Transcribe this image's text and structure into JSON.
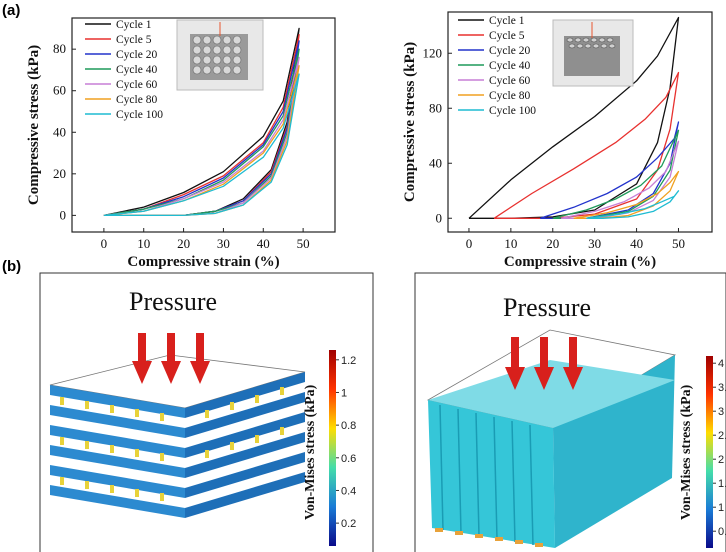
{
  "panel_labels": {
    "a": "(a)",
    "b": "(b)"
  },
  "colors": {
    "Cycle 1": "#111111",
    "Cycle 5": "#e8312f",
    "Cycle 20": "#2233cc",
    "Cycle 40": "#1f9a5a",
    "Cycle 60": "#c77fd6",
    "Cycle 80": "#f0a020",
    "Cycle 100": "#1fbcd2"
  },
  "chart_data": [
    {
      "type": "line",
      "title": "",
      "xlabel": "Compressive strain (%)",
      "ylabel": "Compressive stress (kPa)",
      "xlim": [
        -8,
        58
      ],
      "ylim": [
        -8,
        95
      ],
      "xticks": [
        0,
        10,
        20,
        30,
        40,
        50
      ],
      "yticks": [
        0,
        20,
        40,
        60,
        80
      ],
      "legend": "top-left",
      "series": [
        {
          "name": "Cycle 1",
          "load": [
            [
              0,
              0
            ],
            [
              10,
              4
            ],
            [
              20,
              11
            ],
            [
              30,
              21
            ],
            [
              40,
              38
            ],
            [
              45,
              55
            ],
            [
              49,
              90
            ]
          ],
          "unload": [
            [
              49,
              90
            ],
            [
              46,
              45
            ],
            [
              42,
              22
            ],
            [
              35,
              8
            ],
            [
              28,
              2
            ],
            [
              20,
              0
            ],
            [
              0,
              0
            ]
          ]
        },
        {
          "name": "Cycle 5",
          "load": [
            [
              0,
              0
            ],
            [
              10,
              3
            ],
            [
              20,
              10
            ],
            [
              30,
              19
            ],
            [
              40,
              35
            ],
            [
              45,
              52
            ],
            [
              49,
              87
            ]
          ],
          "unload": [
            [
              49,
              87
            ],
            [
              46,
              43
            ],
            [
              42,
              21
            ],
            [
              35,
              7
            ],
            [
              28,
              2
            ],
            [
              20,
              0
            ],
            [
              0,
              0
            ]
          ]
        },
        {
          "name": "Cycle 20",
          "load": [
            [
              0,
              0
            ],
            [
              10,
              3
            ],
            [
              20,
              9
            ],
            [
              30,
              18
            ],
            [
              40,
              34
            ],
            [
              45,
              50
            ],
            [
              49,
              84
            ]
          ],
          "unload": [
            [
              49,
              84
            ],
            [
              46,
              42
            ],
            [
              42,
              20
            ],
            [
              35,
              7
            ],
            [
              28,
              2
            ],
            [
              20,
              0
            ],
            [
              0,
              0
            ]
          ]
        },
        {
          "name": "Cycle 40",
          "load": [
            [
              0,
              0
            ],
            [
              10,
              3
            ],
            [
              20,
              8
            ],
            [
              30,
              17
            ],
            [
              40,
              33
            ],
            [
              45,
              48
            ],
            [
              49,
              80
            ]
          ],
          "unload": [
            [
              49,
              80
            ],
            [
              46,
              40
            ],
            [
              42,
              19
            ],
            [
              35,
              6
            ],
            [
              28,
              2
            ],
            [
              20,
              0
            ],
            [
              0,
              0
            ]
          ]
        },
        {
          "name": "Cycle 60",
          "load": [
            [
              0,
              0
            ],
            [
              10,
              2
            ],
            [
              20,
              8
            ],
            [
              30,
              16
            ],
            [
              40,
              31
            ],
            [
              45,
              46
            ],
            [
              49,
              76
            ]
          ],
          "unload": [
            [
              49,
              76
            ],
            [
              46,
              38
            ],
            [
              42,
              18
            ],
            [
              35,
              6
            ],
            [
              28,
              1
            ],
            [
              20,
              0
            ],
            [
              0,
              0
            ]
          ]
        },
        {
          "name": "Cycle 80",
          "load": [
            [
              0,
              0
            ],
            [
              10,
              2
            ],
            [
              20,
              7
            ],
            [
              30,
              15
            ],
            [
              40,
              30
            ],
            [
              45,
              44
            ],
            [
              49,
              72
            ]
          ],
          "unload": [
            [
              49,
              72
            ],
            [
              46,
              36
            ],
            [
              42,
              17
            ],
            [
              35,
              5
            ],
            [
              28,
              1
            ],
            [
              20,
              0
            ],
            [
              0,
              0
            ]
          ]
        },
        {
          "name": "Cycle 100",
          "load": [
            [
              0,
              0
            ],
            [
              10,
              2
            ],
            [
              20,
              7
            ],
            [
              30,
              14
            ],
            [
              40,
              28
            ],
            [
              45,
              42
            ],
            [
              49,
              68
            ]
          ],
          "unload": [
            [
              49,
              68
            ],
            [
              46,
              34
            ],
            [
              42,
              16
            ],
            [
              35,
              5
            ],
            [
              28,
              1
            ],
            [
              20,
              0
            ],
            [
              0,
              0
            ]
          ]
        }
      ]
    },
    {
      "type": "line",
      "title": "",
      "xlabel": "Compressive strain (%)",
      "ylabel": "Compressive stress (kPa)",
      "xlim": [
        -5,
        58
      ],
      "ylim": [
        -10,
        150
      ],
      "xticks": [
        0,
        10,
        20,
        30,
        40,
        50
      ],
      "yticks": [
        0,
        40,
        80,
        120
      ],
      "legend": "top-left",
      "series": [
        {
          "name": "Cycle 1",
          "load": [
            [
              0,
              0
            ],
            [
              10,
              28
            ],
            [
              20,
              52
            ],
            [
              30,
              74
            ],
            [
              40,
              100
            ],
            [
              45,
              118
            ],
            [
              50,
              146
            ]
          ],
          "unload": [
            [
              50,
              146
            ],
            [
              48,
              95
            ],
            [
              45,
              55
            ],
            [
              40,
              25
            ],
            [
              30,
              6
            ],
            [
              20,
              1
            ],
            [
              10,
              0
            ],
            [
              0,
              0
            ]
          ]
        },
        {
          "name": "Cycle 5",
          "load": [
            [
              6,
              0
            ],
            [
              15,
              18
            ],
            [
              25,
              36
            ],
            [
              35,
              55
            ],
            [
              42,
              72
            ],
            [
              47,
              88
            ],
            [
              50,
              106
            ]
          ],
          "unload": [
            [
              50,
              106
            ],
            [
              48,
              65
            ],
            [
              45,
              35
            ],
            [
              40,
              14
            ],
            [
              30,
              3
            ],
            [
              20,
              0
            ],
            [
              6,
              0
            ]
          ]
        },
        {
          "name": "Cycle 20",
          "load": [
            [
              17,
              0
            ],
            [
              25,
              8
            ],
            [
              33,
              18
            ],
            [
              40,
              30
            ],
            [
              45,
              44
            ],
            [
              49,
              58
            ],
            [
              50,
              70
            ]
          ],
          "unload": [
            [
              50,
              70
            ],
            [
              48,
              40
            ],
            [
              44,
              18
            ],
            [
              38,
              6
            ],
            [
              28,
              0
            ],
            [
              17,
              0
            ]
          ]
        },
        {
          "name": "Cycle 40",
          "load": [
            [
              20,
              0
            ],
            [
              28,
              6
            ],
            [
              35,
              14
            ],
            [
              41,
              24
            ],
            [
              46,
              38
            ],
            [
              50,
              64
            ]
          ],
          "unload": [
            [
              50,
              64
            ],
            [
              48,
              35
            ],
            [
              44,
              16
            ],
            [
              38,
              5
            ],
            [
              28,
              0
            ],
            [
              20,
              0
            ]
          ]
        },
        {
          "name": "Cycle 60",
          "load": [
            [
              22,
              0
            ],
            [
              30,
              5
            ],
            [
              37,
              12
            ],
            [
              43,
              22
            ],
            [
              47,
              34
            ],
            [
              50,
              56
            ]
          ],
          "unload": [
            [
              50,
              56
            ],
            [
              48,
              30
            ],
            [
              44,
              13
            ],
            [
              38,
              4
            ],
            [
              30,
              0
            ],
            [
              22,
              0
            ]
          ]
        },
        {
          "name": "Cycle 80",
          "load": [
            [
              25,
              0
            ],
            [
              33,
              4
            ],
            [
              40,
              10
            ],
            [
              45,
              18
            ],
            [
              48,
              26
            ],
            [
              50,
              34
            ]
          ],
          "unload": [
            [
              50,
              34
            ],
            [
              48,
              20
            ],
            [
              44,
              9
            ],
            [
              38,
              2
            ],
            [
              31,
              0
            ],
            [
              25,
              0
            ]
          ]
        },
        {
          "name": "Cycle 100",
          "load": [
            [
              28,
              0
            ],
            [
              36,
              3
            ],
            [
              42,
              7
            ],
            [
              46,
              12
            ],
            [
              49,
              16
            ],
            [
              50,
              20
            ]
          ],
          "unload": [
            [
              50,
              20
            ],
            [
              48,
              12
            ],
            [
              44,
              5
            ],
            [
              38,
              1
            ],
            [
              32,
              0
            ],
            [
              28,
              0
            ]
          ]
        }
      ]
    }
  ],
  "simulation": {
    "left": {
      "title": "Pressure",
      "colorbar_label": "Von-Mises stress (kPa)",
      "colorbar_ticks": [
        "1.2",
        "1",
        "0.8",
        "0.6",
        "0.4",
        "0.2"
      ]
    },
    "right": {
      "title": "Pressure",
      "colorbar_label": "Von-Mises stress (kPa)",
      "colorbar_ticks": [
        "4",
        "3.5",
        "3",
        "2.5",
        "2",
        "1.5",
        "1",
        "0.5"
      ]
    }
  }
}
